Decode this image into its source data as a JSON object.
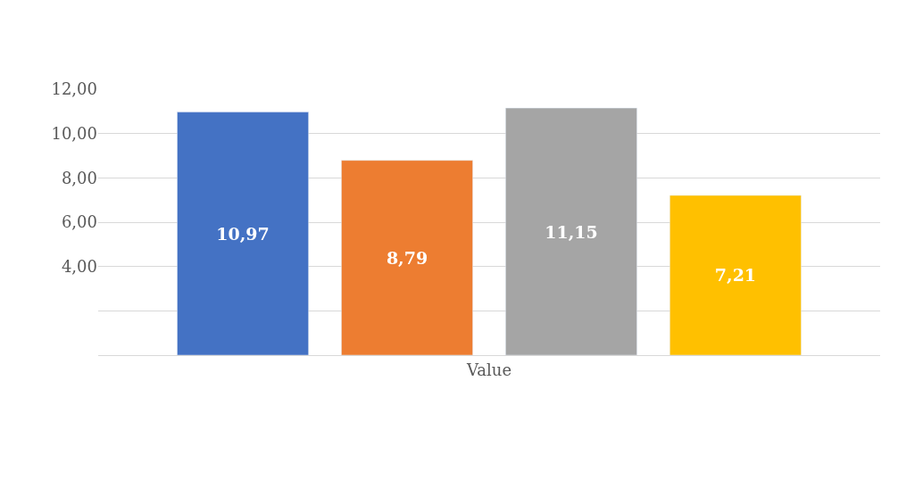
{
  "chart_data": {
    "type": "bar",
    "categories": [
      "Value"
    ],
    "series": [
      {
        "color": "#4472c4",
        "values": [
          10.97
        ]
      },
      {
        "color": "#ed7d31",
        "values": [
          8.79
        ]
      },
      {
        "color": "#a5a5a5",
        "values": [
          11.15
        ]
      },
      {
        "color": "#ffc000",
        "values": [
          7.21
        ]
      }
    ],
    "value_labels": [
      [
        "10,97"
      ],
      [
        "8,79"
      ],
      [
        "11,15"
      ],
      [
        "7,21"
      ]
    ],
    "ylim": [
      0,
      12
    ],
    "yticks": [
      {
        "value": 0,
        "label": null
      },
      {
        "value": 2,
        "label": null
      },
      {
        "value": 4,
        "label": "4,00"
      },
      {
        "value": 6,
        "label": "6,00"
      },
      {
        "value": 8,
        "label": "8,00"
      },
      {
        "value": 10,
        "label": "10,00"
      },
      {
        "value": 12,
        "label": "12,00"
      }
    ],
    "grid": "y"
  }
}
